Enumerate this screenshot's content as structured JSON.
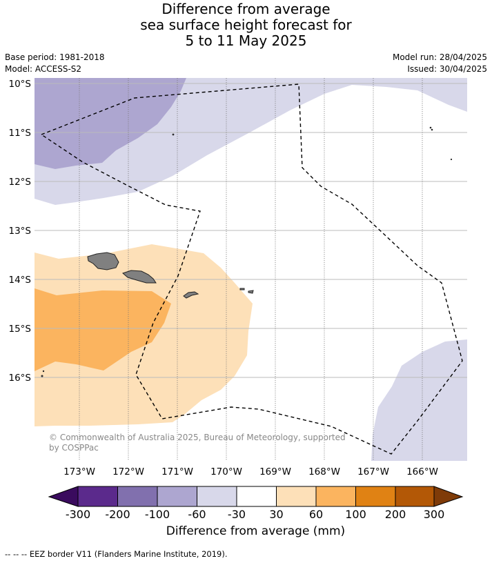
{
  "title": {
    "line1": "Difference from average",
    "line2": "sea surface height forecast for",
    "line3": "5 to 11 May 2025"
  },
  "meta": {
    "base_period": "Base period: 1981-2018",
    "model": "Model: ACCESS-S2",
    "model_run": "Model run: 28/04/2025",
    "issued": "Issued: 30/04/2025"
  },
  "map": {
    "lon_range": [
      -173.9,
      -165.1
    ],
    "lat_range": [
      -10.15,
      -17.8
    ],
    "lat_labels": [
      "10°S",
      "11°S",
      "12°S",
      "13°S",
      "14°S",
      "15°S",
      "16°S"
    ],
    "lon_labels": [
      "173°W",
      "172°W",
      "171°W",
      "170°W",
      "169°W",
      "168°W",
      "167°W",
      "166°W"
    ],
    "copyright_line1": "© Commonwealth of Australia 2025, Bureau of Meteorology, supported",
    "copyright_line2": "by COSPPac"
  },
  "colorbar": {
    "tick_labels": [
      "-300",
      "-200",
      "-100",
      "-60",
      "-30",
      "30",
      "60",
      "100",
      "200",
      "300"
    ],
    "colors": {
      "under": "#3a0b5e",
      "c_-300_-200": "#5b2a8c",
      "c_-200_-100": "#8170ae",
      "c_-100_-60": "#ada6d0",
      "c_-60_-30": "#d8d8ea",
      "c_-30_30": "#ffffff",
      "c_30_60": "#fde0b8",
      "c_60_100": "#fbb45f",
      "c_100_200": "#e08214",
      "c_200_300": "#b35806",
      "over": "#7f3b08",
      "land": "#808080"
    },
    "label": "Difference from average (mm)"
  },
  "footnote": "--  --  -- EEZ border V11 (Flanders Marine Institute, 2019)."
}
